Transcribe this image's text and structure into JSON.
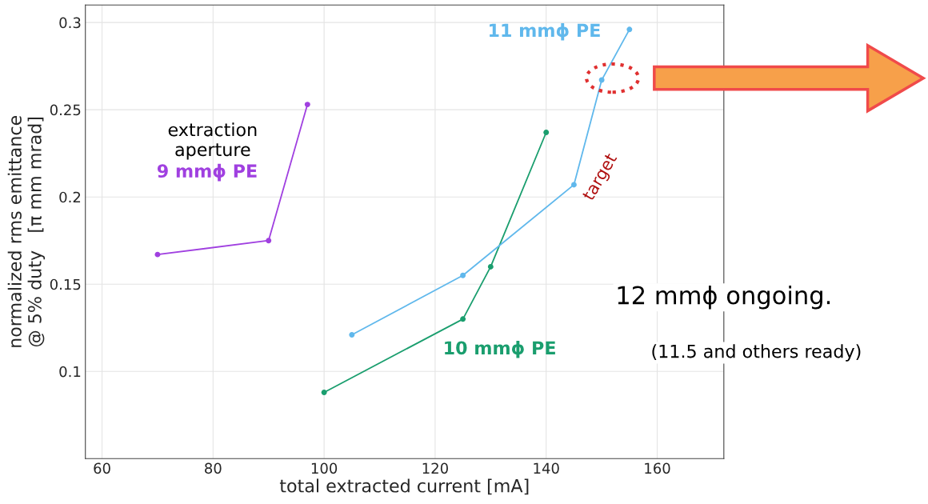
{
  "chart_data": {
    "type": "line",
    "xlabel": "total extracted current [mA]",
    "ylabel": "normalized rms emittance\n@ 5% duty   [π mm mrad]",
    "xlim": [
      57,
      172
    ],
    "ylim": [
      0.05,
      0.31
    ],
    "xticks": [
      60,
      80,
      100,
      120,
      140,
      160
    ],
    "yticks": [
      0.1,
      0.15,
      0.2,
      0.25,
      0.3
    ],
    "grid": true,
    "legend": false,
    "marker": "circle",
    "line_style": "solid",
    "series": [
      {
        "name": "9 mmϕ PE",
        "color": "#a040e0",
        "x": [
          70,
          90,
          97
        ],
        "values": [
          0.167,
          0.175,
          0.253
        ]
      },
      {
        "name": "10 mmϕ PE",
        "color": "#1a9e6e",
        "x": [
          100,
          125,
          130,
          140
        ],
        "values": [
          0.088,
          0.13,
          0.16,
          0.237
        ]
      },
      {
        "name": "11 mmϕ PE",
        "color": "#60b8ec",
        "x": [
          105,
          125,
          145,
          150,
          155
        ],
        "values": [
          0.121,
          0.155,
          0.207,
          0.267,
          0.296
        ]
      }
    ],
    "annotations": [
      "extraction\naperture",
      "target",
      "12 mmϕ ongoing.",
      "(11.5 and others ready)"
    ]
  }
}
